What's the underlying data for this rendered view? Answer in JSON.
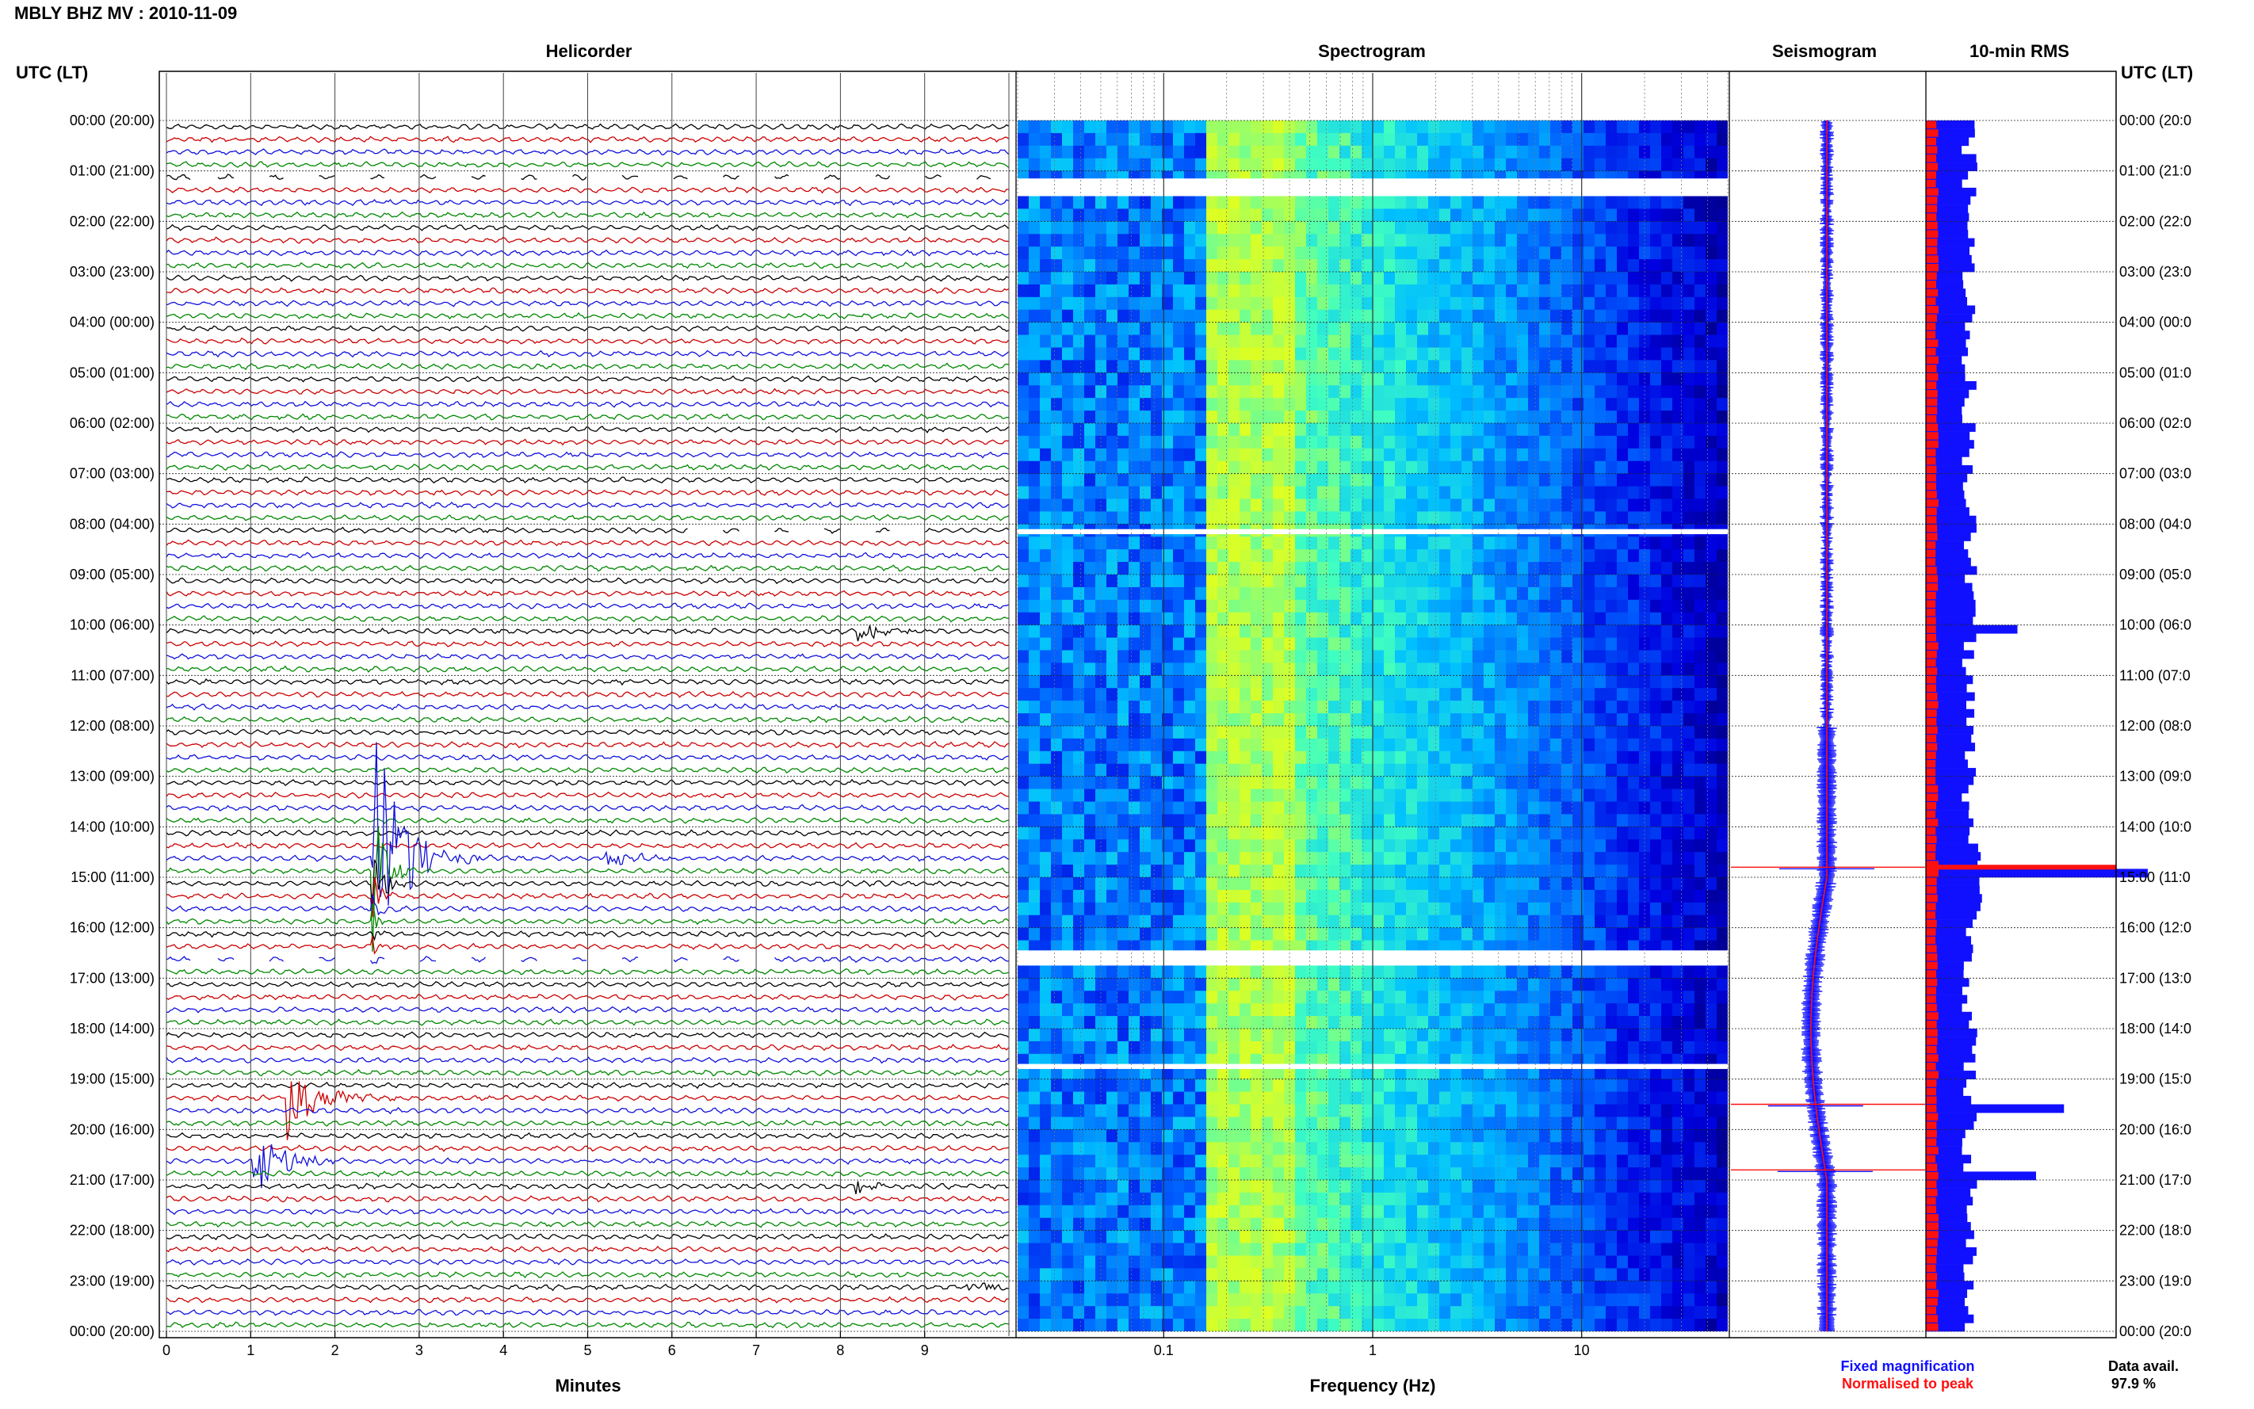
{
  "figure": {
    "title": "MBLY BHZ MV : 2010-11-09",
    "left_axis_label": "UTC (LT)",
    "right_axis_label": "UTC (LT)",
    "panel_titles": {
      "helicorder": "Helicorder",
      "spectrogram": "Spectrogram",
      "seismogram": "Seismogram",
      "rms": "10-min RMS"
    },
    "legend": {
      "fixed": "Fixed magnification",
      "normalised": "Normalised to peak",
      "fixed_color": "#1010ff",
      "normalised_color": "#ff1010"
    },
    "data_avail_label": "Data avail.",
    "data_avail_value": "97.9 %"
  },
  "chart_data": [
    {
      "type": "line",
      "panel": "helicorder",
      "title": "Helicorder",
      "xlabel": "Minutes",
      "xlim": [
        0,
        10
      ],
      "x_ticks": [
        "0",
        "1",
        "2",
        "3",
        "4",
        "5",
        "6",
        "7",
        "8",
        "9"
      ],
      "y_hour_labels": [
        "00:00 (20:00)",
        "01:00 (21:00)",
        "02:00 (22:00)",
        "03:00 (23:00)",
        "04:00 (00:00)",
        "05:00 (01:00)",
        "06:00 (02:00)",
        "07:00 (03:00)",
        "08:00 (04:00)",
        "09:00 (05:00)",
        "10:00 (06:00)",
        "11:00 (07:00)",
        "12:00 (08:00)",
        "13:00 (09:00)",
        "14:00 (10:00)",
        "15:00 (11:00)",
        "16:00 (12:00)",
        "17:00 (13:00)",
        "18:00 (14:00)",
        "19:00 (15:00)",
        "20:00 (16:00)",
        "21:00 (17:00)",
        "22:00 (18:00)",
        "23:00 (19:00)",
        "00:00 (20:00)"
      ],
      "right_hour_labels": [
        "00:00 (20:0",
        "01:00 (21:0",
        "02:00 (22:0",
        "03:00 (23:0",
        "04:00 (00:0",
        "05:00 (01:0",
        "06:00 (02:0",
        "07:00 (03:0",
        "08:00 (04:0",
        "09:00 (05:0",
        "10:00 (06:0",
        "11:00 (07:0",
        "12:00 (08:0",
        "13:00 (09:0",
        "14:00 (10:0",
        "15:00 (11:0",
        "16:00 (12:0",
        "17:00 (13:0",
        "18:00 (14:0",
        "19:00 (15:0",
        "20:00 (16:0",
        "21:00 (17:0",
        "22:00 (18:0",
        "23:00 (19:0",
        "00:00 (20:0"
      ],
      "trace_colors": [
        "#000000",
        "#cc0000",
        "#1010dd",
        "#008800"
      ],
      "gap_traces": [
        {
          "hour": 1.0,
          "from_min": 0.3,
          "to_min": 10
        },
        {
          "hour": 16.4,
          "from_min": 0.3,
          "to_min": 7.4
        },
        {
          "hour": 7.95,
          "from_min": 6.1,
          "to_min": 9.1
        }
      ],
      "events": [
        {
          "hour": 14.4,
          "minute": 2.45,
          "amplitude": 1.0,
          "label": "large regional event, coda continues into next trace"
        },
        {
          "hour": 19.2,
          "minute": 1.45,
          "amplitude": 0.3
        },
        {
          "hour": 20.6,
          "minute": 1.05,
          "amplitude": 0.25
        },
        {
          "hour": 10.0,
          "minute": 8.2,
          "amplitude": 0.07
        },
        {
          "hour": 14.5,
          "minute": 5.2,
          "amplitude": 0.07
        },
        {
          "hour": 21.0,
          "minute": 8.2,
          "amplitude": 0.05
        },
        {
          "hour": 23.0,
          "minute": 9.5,
          "amplitude": 0.05
        }
      ]
    },
    {
      "type": "heatmap",
      "panel": "spectrogram",
      "title": "Spectrogram",
      "xlabel": "Frequency (Hz)",
      "x_scale": "log",
      "xlim": [
        0.02,
        50
      ],
      "x_ticks": [
        "0.1",
        "1",
        "10"
      ],
      "y_range_hours": [
        0,
        24
      ],
      "colormap": [
        "#00007f",
        "#0000e0",
        "#0060ff",
        "#00c0ff",
        "#40ffc0",
        "#c0ff40",
        "#ffff00"
      ],
      "peak_band_hz": [
        0.15,
        0.4
      ],
      "data_gaps_hours": [
        1.15,
        1.5,
        8.1,
        8.2,
        16.45,
        16.75,
        18.7,
        18.8
      ]
    },
    {
      "type": "line",
      "panel": "seismogram",
      "title": "Seismogram",
      "series": [
        {
          "name": "Fixed magnification",
          "color": "#1010ff"
        },
        {
          "name": "Normalised to peak",
          "color": "#ff1010"
        }
      ],
      "spikes_hours": [
        14.8,
        19.5,
        20.8
      ]
    },
    {
      "type": "bar",
      "panel": "rms",
      "title": "10-min RMS",
      "bin_minutes": 10,
      "y_range_hours": [
        0,
        24
      ],
      "series": [
        {
          "name": "Fixed magnification",
          "color": "#1010ff"
        },
        {
          "name": "Normalised to peak",
          "color": "#ff1010"
        }
      ],
      "peaks": [
        {
          "hour": 14.8,
          "relative": 1.0
        },
        {
          "hour": 19.5,
          "relative": 0.55
        },
        {
          "hour": 20.8,
          "relative": 0.4
        },
        {
          "hour": 10.0,
          "relative": 0.3
        }
      ]
    }
  ]
}
